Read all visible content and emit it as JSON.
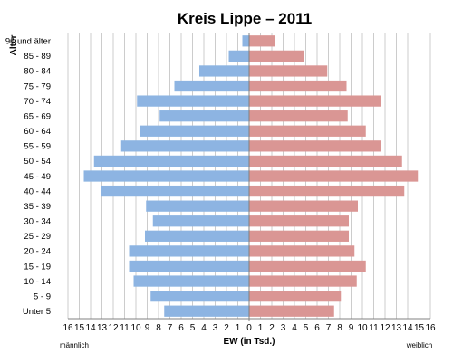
{
  "chart_data": {
    "type": "bar",
    "orientation": "horizontal",
    "subtype": "population-pyramid",
    "title": "Kreis Lippe – 2011",
    "ylabel": "Alter",
    "xlabel": "EW (in Tsd.)",
    "left_label": "männlich",
    "right_label": "weiblich",
    "xlim": [
      -16,
      16
    ],
    "xticks": [
      16,
      15,
      14,
      13,
      12,
      11,
      10,
      9,
      8,
      7,
      6,
      5,
      4,
      3,
      2,
      1,
      0,
      1,
      2,
      3,
      4,
      5,
      6,
      7,
      8,
      9,
      10,
      11,
      12,
      13,
      14,
      15,
      16
    ],
    "grid": true,
    "categories": [
      "90 und älter",
      "85 - 89",
      "80 - 84",
      "75 - 79",
      "70 - 74",
      "65 - 69",
      "60 - 64",
      "55 - 59",
      "50 - 54",
      "45 - 49",
      "40 - 44",
      "35 - 39",
      "30 - 34",
      "25 - 29",
      "20 - 24",
      "15 - 19",
      "10 - 14",
      "5 - 9",
      "Unter 5"
    ],
    "series": [
      {
        "name": "männlich",
        "color": "#8db4e2",
        "values": [
          0.6,
          1.8,
          4.4,
          6.6,
          9.9,
          7.9,
          9.6,
          11.3,
          13.7,
          14.6,
          13.1,
          9.1,
          8.5,
          9.2,
          10.6,
          10.6,
          10.2,
          8.7,
          7.5
        ]
      },
      {
        "name": "weiblich",
        "color": "#da9694",
        "values": [
          2.3,
          4.8,
          6.9,
          8.6,
          11.6,
          8.7,
          10.3,
          11.6,
          13.5,
          14.9,
          13.7,
          9.6,
          8.8,
          8.8,
          9.3,
          10.3,
          9.5,
          8.1,
          7.5
        ]
      }
    ]
  }
}
